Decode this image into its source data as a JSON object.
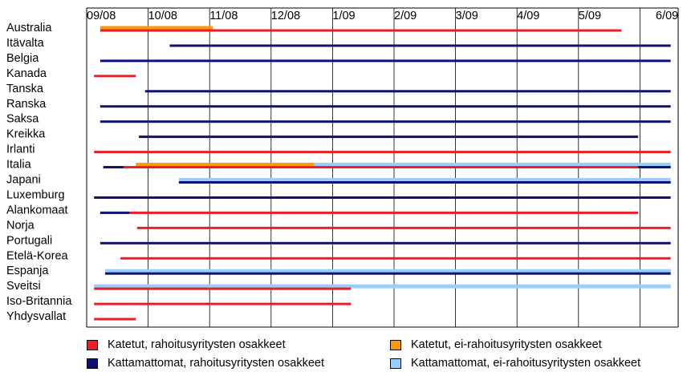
{
  "chart_data": {
    "type": "gantt",
    "x_ticks": [
      "09/08",
      "10/08",
      "11/08",
      "12/08",
      "1/09",
      "2/09",
      "3/09",
      "4/09",
      "5/09",
      "6/09"
    ],
    "grid": "vertical",
    "legend_placement": "bottom",
    "categories": [
      "Australia",
      "Itävalta",
      "Belgia",
      "Kanada",
      "Tanska",
      "Ranska",
      "Saksa",
      "Kreikka",
      "Irlanti",
      "Italia",
      "Japani",
      "Luxemburg",
      "Alankomaat",
      "Norja",
      "Portugali",
      "Etelä-Korea",
      "Espanja",
      "Sveitsi",
      "Iso-Britannia",
      "Yhdysvallat"
    ],
    "series": [
      {
        "name": "Katetut, rahoitusyritysten osakkeet",
        "color": "#ee1c25"
      },
      {
        "name": "Kattamattomat, rahoitusyritysten osakkeet",
        "color": "#10106e"
      },
      {
        "name": "Katetut, ei-rahoitusyritysten osakkeet",
        "color": "#ff9900"
      },
      {
        "name": "Kattamattomat, ei-rahoitusyritysten osakkeet",
        "color": "#99ccff"
      }
    ],
    "bars": [
      {
        "country": "Australia",
        "series": 2,
        "start": "09/08",
        "end": "11/08",
        "start_m": 0.22,
        "end_m": 2.05
      },
      {
        "country": "Australia",
        "series": 0,
        "start": "09/08",
        "end": "5/09",
        "start_m": 0.22,
        "end_m": 8.7
      },
      {
        "country": "Itävalta",
        "series": 1,
        "start": "10/08",
        "end": "6/09",
        "start_m": 1.35,
        "end_m": 9.5
      },
      {
        "country": "Belgia",
        "series": 1,
        "start": "09/08",
        "end": "6/09",
        "start_m": 0.22,
        "end_m": 9.5
      },
      {
        "country": "Kanada",
        "series": 0,
        "start": "09/08",
        "end": "10/08",
        "start_m": 0.12,
        "end_m": 0.8
      },
      {
        "country": "Tanska",
        "series": 1,
        "start": "09/08",
        "end": "6/09",
        "start_m": 0.95,
        "end_m": 9.5
      },
      {
        "country": "Ranska",
        "series": 1,
        "start": "09/08",
        "end": "6/09",
        "start_m": 0.22,
        "end_m": 9.5
      },
      {
        "country": "Saksa",
        "series": 1,
        "start": "09/08",
        "end": "6/09",
        "start_m": 0.22,
        "end_m": 9.5
      },
      {
        "country": "Kreikka",
        "series": 1,
        "start": "10/08",
        "end": "6/09",
        "start_m": 0.85,
        "end_m": 8.97
      },
      {
        "country": "Irlanti",
        "series": 0,
        "start": "09/08",
        "end": "6/09",
        "start_m": 0.12,
        "end_m": 9.5
      },
      {
        "country": "Italia",
        "series": 3,
        "start": "1/09",
        "end": "6/09",
        "start_m": 3.7,
        "end_m": 9.5
      },
      {
        "country": "Italia",
        "series": 2,
        "start": "10/08",
        "end": "1/09",
        "start_m": 0.8,
        "end_m": 3.7
      },
      {
        "country": "Italia",
        "series": 1,
        "start": "09/08",
        "end": "10/08",
        "start_m": 0.27,
        "end_m": 0.6
      },
      {
        "country": "Italia",
        "series": 0,
        "start": "09/08",
        "end": "6/09",
        "start_m": 0.6,
        "end_m": 8.97
      },
      {
        "country": "Italia",
        "series": 1,
        "start": "6/09",
        "end": "6/09",
        "start_m": 8.97,
        "end_m": 9.5
      },
      {
        "country": "Japani",
        "series": 3,
        "start": "10/08",
        "end": "6/09",
        "start_m": 1.5,
        "end_m": 9.5
      },
      {
        "country": "Japani",
        "series": 1,
        "start": "10/08",
        "end": "6/09",
        "start_m": 1.5,
        "end_m": 9.5
      },
      {
        "country": "Luxemburg",
        "series": 1,
        "start": "09/08",
        "end": "6/09",
        "start_m": 0.12,
        "end_m": 9.5
      },
      {
        "country": "Alankomaat",
        "series": 1,
        "start": "09/08",
        "end": "10/08",
        "start_m": 0.22,
        "end_m": 0.7
      },
      {
        "country": "Alankomaat",
        "series": 0,
        "start": "10/08",
        "end": "5/09",
        "start_m": 0.7,
        "end_m": 8.97
      },
      {
        "country": "Norja",
        "series": 0,
        "start": "10/08",
        "end": "6/09",
        "start_m": 0.82,
        "end_m": 9.5
      },
      {
        "country": "Portugali",
        "series": 1,
        "start": "09/08",
        "end": "6/09",
        "start_m": 0.22,
        "end_m": 9.5
      },
      {
        "country": "Etelä-Korea",
        "series": 0,
        "start": "09/08",
        "end": "6/09",
        "start_m": 0.55,
        "end_m": 9.5
      },
      {
        "country": "Espanja",
        "series": 3,
        "start": "09/08",
        "end": "6/09",
        "start_m": 0.3,
        "end_m": 9.5
      },
      {
        "country": "Espanja",
        "series": 1,
        "start": "09/08",
        "end": "6/09",
        "start_m": 0.3,
        "end_m": 9.5
      },
      {
        "country": "Sveitsi",
        "series": 3,
        "start": "09/08",
        "end": "6/09",
        "start_m": 0.12,
        "end_m": 9.5
      },
      {
        "country": "Sveitsi",
        "series": 0,
        "start": "09/08",
        "end": "1/09",
        "start_m": 0.12,
        "end_m": 4.3
      },
      {
        "country": "Iso-Britannia",
        "series": 0,
        "start": "09/08",
        "end": "1/09",
        "start_m": 0.12,
        "end_m": 4.3
      },
      {
        "country": "Yhdysvallat",
        "series": 0,
        "start": "09/08",
        "end": "10/08",
        "start_m": 0.12,
        "end_m": 0.8
      }
    ]
  }
}
